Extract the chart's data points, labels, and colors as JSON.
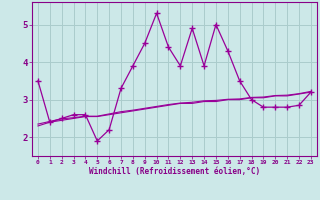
{
  "x": [
    0,
    1,
    2,
    3,
    4,
    5,
    6,
    7,
    8,
    9,
    10,
    11,
    12,
    13,
    14,
    15,
    16,
    17,
    18,
    19,
    20,
    21,
    22,
    23
  ],
  "y_main": [
    3.5,
    2.4,
    2.5,
    2.6,
    2.6,
    1.9,
    2.2,
    3.3,
    3.9,
    4.5,
    5.3,
    4.4,
    3.9,
    4.9,
    3.9,
    5.0,
    4.3,
    3.5,
    3.0,
    2.8,
    2.8,
    2.8,
    2.85,
    3.2
  ],
  "y_trend1": [
    2.3,
    2.4,
    2.45,
    2.5,
    2.55,
    2.55,
    2.6,
    2.65,
    2.7,
    2.75,
    2.8,
    2.85,
    2.9,
    2.9,
    2.95,
    2.95,
    3.0,
    3.0,
    3.05,
    3.05,
    3.1,
    3.1,
    3.15,
    3.2
  ],
  "y_trend2": [
    2.35,
    2.42,
    2.49,
    2.52,
    2.56,
    2.56,
    2.62,
    2.68,
    2.72,
    2.77,
    2.82,
    2.87,
    2.91,
    2.93,
    2.97,
    2.98,
    3.01,
    3.02,
    3.06,
    3.07,
    3.11,
    3.12,
    3.16,
    3.22
  ],
  "line_color": "#990099",
  "trend_color": "#990099",
  "bg_color": "#cce8e8",
  "grid_color": "#aacccc",
  "xlabel": "Windchill (Refroidissement éolien,°C)",
  "xlim": [
    -0.5,
    23.5
  ],
  "ylim": [
    1.5,
    5.6
  ],
  "yticks": [
    2,
    3,
    4,
    5
  ],
  "xtick_labels": [
    "0",
    "1",
    "2",
    "3",
    "4",
    "5",
    "6",
    "7",
    "8",
    "9",
    "10",
    "11",
    "12",
    "13",
    "14",
    "15",
    "16",
    "17",
    "18",
    "19",
    "20",
    "21",
    "22",
    "23"
  ],
  "marker": "+"
}
